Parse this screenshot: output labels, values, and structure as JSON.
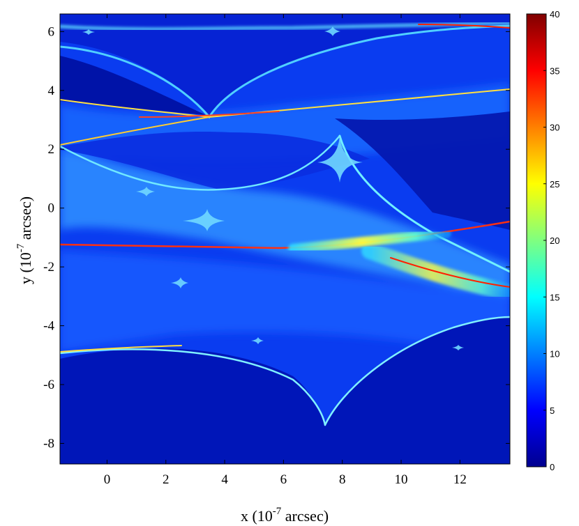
{
  "chart_data": {
    "type": "heatmap",
    "title": "",
    "xlabel": "x (10^-7 arcsec)",
    "ylabel": "y (10^-7 arcsec)",
    "x_label_parts": {
      "prefix": "x (10",
      "exponent": "-7",
      "suffix": " arcsec)"
    },
    "y_label_parts": {
      "prefix": "y (10",
      "exponent": "-7",
      "suffix": " arcsec)"
    },
    "xlim": [
      -1.6,
      13.7
    ],
    "ylim": [
      -8.7,
      6.6
    ],
    "x_ticks": [
      0,
      2,
      4,
      6,
      8,
      10,
      12
    ],
    "y_ticks": [
      -8,
      -6,
      -4,
      -2,
      0,
      2,
      4,
      6
    ],
    "colorbar": {
      "min": 0,
      "max": 40,
      "ticks": [
        0,
        5,
        10,
        15,
        20,
        25,
        30,
        35,
        40
      ],
      "colormap": "jet"
    },
    "grid": false,
    "description_features": {
      "caustic_cusps": [
        {
          "x": 3.5,
          "y": 2.8
        },
        {
          "x": 7.4,
          "y": -7.2
        },
        {
          "x": 7.8,
          "y": 1.6
        }
      ],
      "bright_band_y": -1.3,
      "background_level": 3
    }
  }
}
